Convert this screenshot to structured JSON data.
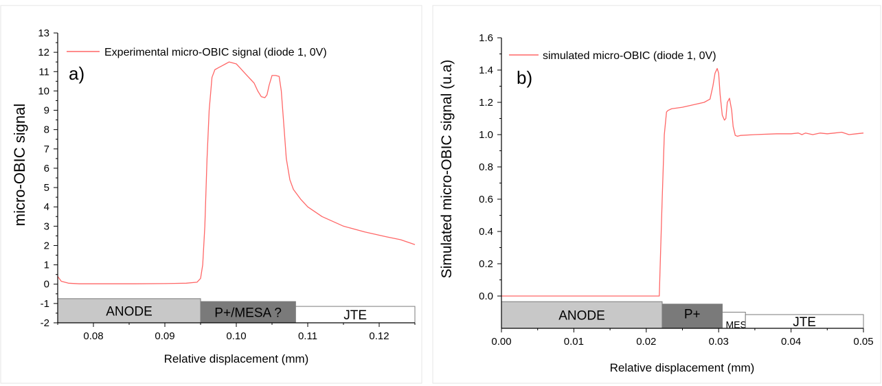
{
  "chart_data": [
    {
      "type": "line",
      "panel_label": "a)",
      "xlabel": "Relative displacement (mm)",
      "ylabel": "micro-OBIC signal",
      "xlim": [
        0.075,
        0.125
      ],
      "ylim": [
        -2,
        13
      ],
      "xticks": [
        0.08,
        0.09,
        0.1,
        0.11,
        0.12
      ],
      "xtick_labels": [
        "0.08",
        "0.09",
        "0.10",
        "0.11",
        "0.12"
      ],
      "yticks": [
        -2,
        -1,
        0,
        1,
        2,
        3,
        4,
        5,
        6,
        7,
        8,
        9,
        10,
        11,
        12,
        13
      ],
      "ytick_labels": [
        "-2",
        "-1",
        "0",
        "1",
        "2",
        "3",
        "4",
        "5",
        "6",
        "7",
        "8",
        "9",
        "10",
        "11",
        "12",
        "13"
      ],
      "legend_position": "top-right",
      "series": [
        {
          "name": "Experimental micro-OBIC signal (diode 1, 0V)",
          "color": "#ff6666",
          "x": [
            0.075,
            0.0755,
            0.0765,
            0.078,
            0.082,
            0.086,
            0.09,
            0.093,
            0.0945,
            0.095,
            0.0953,
            0.0956,
            0.0959,
            0.0962,
            0.0966,
            0.097,
            0.0975,
            0.098,
            0.0985,
            0.099,
            0.0995,
            0.1,
            0.1005,
            0.101,
            0.1015,
            0.102,
            0.1025,
            0.103,
            0.1035,
            0.104,
            0.1043,
            0.1046,
            0.105,
            0.1055,
            0.106,
            0.1063,
            0.1067,
            0.107,
            0.1075,
            0.108,
            0.109,
            0.11,
            0.112,
            0.115,
            0.118,
            0.121,
            0.123,
            0.125
          ],
          "y": [
            0.4,
            0.15,
            0.05,
            0.02,
            0.02,
            0.02,
            0.03,
            0.05,
            0.1,
            0.3,
            1.0,
            3.0,
            6.5,
            9.0,
            10.7,
            11.1,
            11.2,
            11.3,
            11.4,
            11.5,
            11.45,
            11.4,
            11.2,
            11.0,
            10.8,
            10.6,
            10.4,
            10.0,
            9.7,
            9.65,
            9.8,
            10.3,
            10.8,
            10.8,
            10.75,
            10.0,
            8.0,
            6.5,
            5.4,
            4.9,
            4.4,
            4.0,
            3.5,
            3.0,
            2.7,
            2.45,
            2.3,
            2.05
          ]
        }
      ],
      "regions": [
        {
          "label": "ANODE",
          "x0": 0.075,
          "x1": 0.095,
          "y_top": -0.75,
          "y_bottom": -2,
          "color": "#c8c8c8"
        },
        {
          "label": "P+/MESA ?",
          "x0": 0.095,
          "x1": 0.1083,
          "y_top": -0.9,
          "y_bottom": -2,
          "color": "#7a7a7a"
        },
        {
          "label": "JTE",
          "x0": 0.1083,
          "x1": 0.125,
          "y_top": -1.15,
          "y_bottom": -2,
          "color": "#ffffff"
        }
      ]
    },
    {
      "type": "line",
      "panel_label": "b)",
      "xlabel": "Relative displacement (mm)",
      "ylabel": "Simulated  micro-OBIC signal (u.a)",
      "xlim": [
        0.0,
        0.05
      ],
      "ylim": [
        -0.2,
        1.6
      ],
      "xticks": [
        0.0,
        0.01,
        0.02,
        0.03,
        0.04,
        0.05
      ],
      "xtick_labels": [
        "0.00",
        "0.01",
        "0.02",
        "0.03",
        "0.04",
        "0.05"
      ],
      "yticks": [
        0.0,
        0.2,
        0.4,
        0.6,
        0.8,
        1.0,
        1.2,
        1.4,
        1.6
      ],
      "ytick_labels": [
        "0.0",
        "0.2",
        "0.4",
        "0.6",
        "0.8",
        "1.0",
        "1.2",
        "1.4",
        "1.6"
      ],
      "legend_position": "top-left",
      "series": [
        {
          "name": "simulated micro-OBIC (diode 1, 0V)",
          "color": "#ff6666",
          "x": [
            0.0,
            0.01,
            0.0218,
            0.0219,
            0.0222,
            0.0225,
            0.0228,
            0.023,
            0.0235,
            0.025,
            0.027,
            0.028,
            0.0288,
            0.0292,
            0.0295,
            0.0298,
            0.03,
            0.0302,
            0.0305,
            0.0308,
            0.031,
            0.0312,
            0.0315,
            0.0318,
            0.032,
            0.0323,
            0.0326,
            0.033,
            0.035,
            0.038,
            0.04,
            0.041,
            0.0415,
            0.042,
            0.043,
            0.044,
            0.045,
            0.046,
            0.047,
            0.048,
            0.049,
            0.05
          ],
          "y": [
            0.0,
            0.0,
            0.0,
            0.15,
            0.6,
            1.0,
            1.14,
            1.15,
            1.16,
            1.17,
            1.19,
            1.2,
            1.22,
            1.3,
            1.38,
            1.41,
            1.38,
            1.25,
            1.12,
            1.09,
            1.1,
            1.2,
            1.225,
            1.15,
            1.05,
            0.995,
            0.99,
            0.995,
            1.0,
            1.005,
            1.005,
            1.01,
            1.0,
            1.01,
            1.0,
            1.01,
            1.005,
            1.01,
            1.015,
            1.0,
            1.005,
            1.01
          ]
        }
      ],
      "regions": [
        {
          "label": "ANODE",
          "x0": 0.0,
          "x1": 0.0222,
          "y_top": -0.035,
          "y_bottom": -0.2,
          "color": "#c8c8c8"
        },
        {
          "label": "P+",
          "x0": 0.0222,
          "x1": 0.0305,
          "y_top": -0.05,
          "y_bottom": -0.2,
          "color": "#7a7a7a"
        },
        {
          "label": "MESA",
          "x0": 0.0305,
          "x1": 0.0337,
          "y_top": -0.1,
          "y_bottom": -0.2,
          "color": "#ffffff"
        },
        {
          "label": "JTE",
          "x0": 0.0337,
          "x1": 0.05,
          "y_top": -0.115,
          "y_bottom": -0.2,
          "color": "#ffffff"
        }
      ]
    }
  ]
}
